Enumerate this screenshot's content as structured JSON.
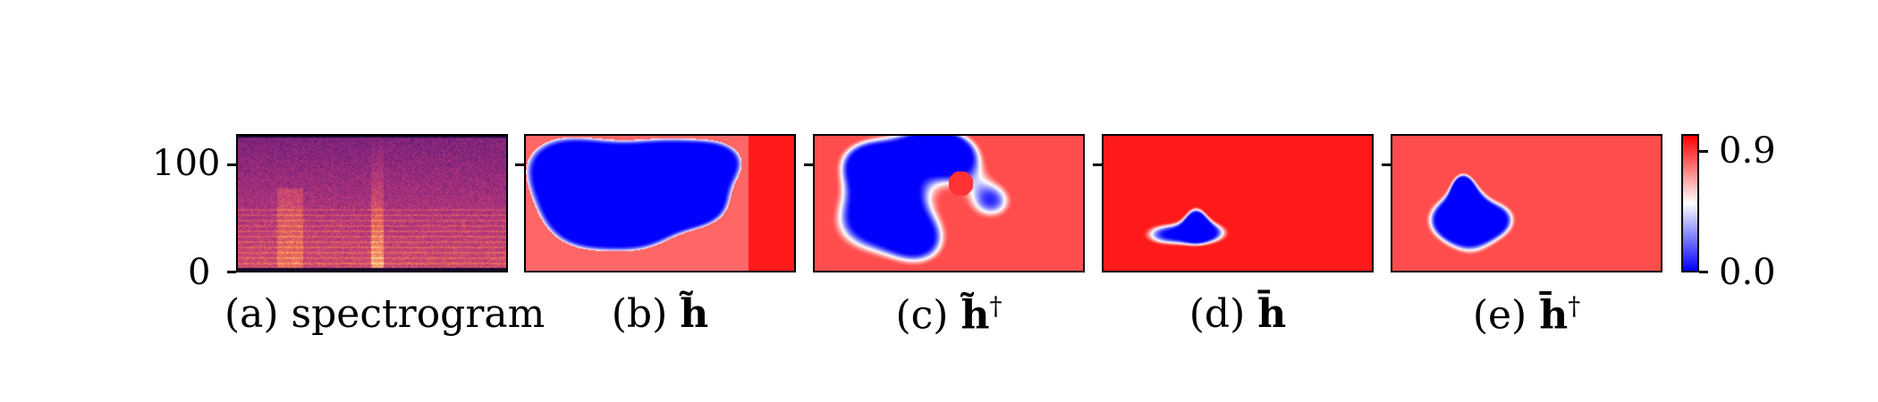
{
  "chart_data": {
    "type": "heatmap",
    "panels": [
      {
        "id": "a",
        "caption": "(a) spectrogram",
        "kind": "spectrogram"
      },
      {
        "id": "b",
        "caption_prefix": "(b)",
        "symbol": "h",
        "accent": "tilde",
        "dagger": false,
        "kind": "saliency"
      },
      {
        "id": "c",
        "caption_prefix": "(c)",
        "symbol": "h",
        "accent": "tilde",
        "dagger": true,
        "kind": "saliency"
      },
      {
        "id": "d",
        "caption_prefix": "(d)",
        "symbol": "h",
        "accent": "bar",
        "dagger": false,
        "kind": "saliency"
      },
      {
        "id": "e",
        "caption_prefix": "(e)",
        "symbol": "h",
        "accent": "bar",
        "dagger": true,
        "kind": "saliency"
      }
    ],
    "y_axis": {
      "ticks": [
        "100",
        "0"
      ],
      "ylim": [
        0,
        128
      ]
    },
    "colorbar": {
      "ticks": [
        "0.9",
        "0.0"
      ],
      "range": [
        0.0,
        0.9
      ],
      "colormap": [
        "#0000ff",
        "#ffffff",
        "#ff0000"
      ]
    }
  }
}
